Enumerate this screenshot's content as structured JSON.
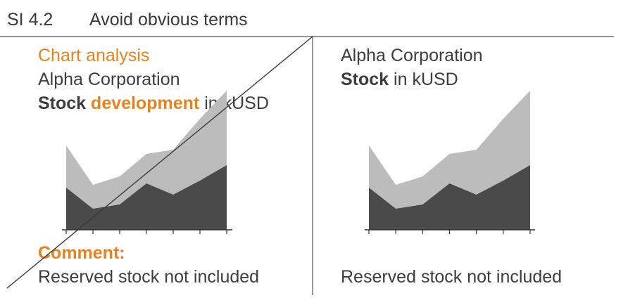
{
  "header": {
    "number": "SI 4.2",
    "title": "Avoid obvious terms"
  },
  "colors": {
    "accent": "#e8821e",
    "area_light": "#bcbcbc",
    "area_dark": "#4a4a4a",
    "text": "#3d3d3d"
  },
  "left_panel": {
    "label": "Chart analysis",
    "company": "Alpha Corporation",
    "heading_bold": "Stock",
    "heading_highlight": "development",
    "heading_rest": "in kUSD",
    "comment_label": "Comment:",
    "footnote": "Reserved stock not included",
    "crossed_out": true
  },
  "right_panel": {
    "company": "Alpha Corporation",
    "heading_bold": "Stock",
    "heading_rest": "in kUSD",
    "footnote": "Reserved stock not included"
  },
  "chart_data": [
    {
      "type": "area",
      "stacked": true,
      "x": [
        1,
        2,
        3,
        4,
        5,
        6,
        7
      ],
      "series": [
        {
          "values": [
            30,
            15,
            18,
            33,
            25,
            35,
            46
          ]
        },
        {
          "values": [
            30,
            17,
            20,
            21,
            32,
            44,
            53
          ]
        }
      ],
      "ylim": [
        0,
        100
      ],
      "grid": false
    },
    {
      "type": "area",
      "stacked": true,
      "x": [
        1,
        2,
        3,
        4,
        5,
        6,
        7
      ],
      "series": [
        {
          "values": [
            30,
            15,
            18,
            33,
            25,
            35,
            46
          ]
        },
        {
          "values": [
            30,
            17,
            20,
            21,
            32,
            44,
            53
          ]
        }
      ],
      "ylim": [
        0,
        100
      ],
      "grid": false
    }
  ]
}
